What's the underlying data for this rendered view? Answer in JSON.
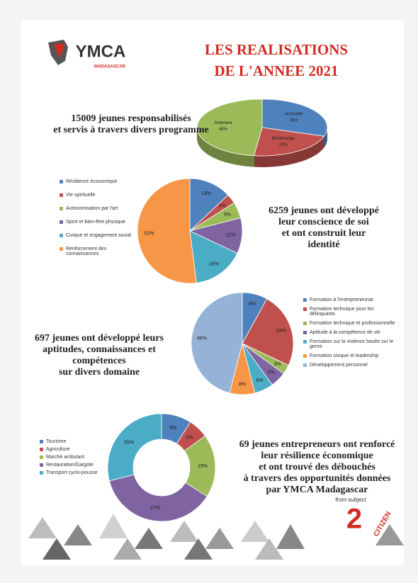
{
  "header": {
    "logo": "YMCA",
    "logo_sub": "MADAGASCAR",
    "title": [
      "LES REALISATIONS",
      "DE L'ANNEE 2021"
    ]
  },
  "chart_data": [
    {
      "type": "pie3d",
      "annotation": [
        "15009  jeunes responsabilisés",
        "et servis à travers divers programme"
      ],
      "categories": [
        "Antsirabe",
        "Moramanga",
        "Ankerana"
      ],
      "values": [
        30,
        22,
        48
      ],
      "value_labels": [
        "30%",
        "22%",
        "48%"
      ],
      "colors": [
        "#4f81bd",
        "#c0504d",
        "#9bbb59"
      ]
    },
    {
      "type": "pie",
      "annotation": [
        "6259 jeunes ont développé",
        "leur conscience de soi",
        "et ont construit leur",
        "identité"
      ],
      "categories": [
        "Résilience économique",
        "Vie spirituelle",
        "Autonomisation par l'art",
        "Sport et bien-être physique",
        "Civique et engagement social",
        "Renforcement des connaissances"
      ],
      "values": [
        13,
        3,
        5,
        11,
        16,
        52
      ],
      "value_labels": [
        "13%",
        "3%",
        "5%",
        "11%",
        "16%",
        "52%"
      ],
      "colors": [
        "#4f81bd",
        "#c0504d",
        "#9bbb59",
        "#8064a2",
        "#4bacc6",
        "#f79646"
      ]
    },
    {
      "type": "pie",
      "annotation": [
        "697  jeunes ont développé leurs",
        "aptitudes, connaissances et",
        "compétences",
        "sur divers domaine"
      ],
      "categories": [
        "Formation à l'entrepreneuriat",
        "Formation technique pour les délinquants",
        "Formation technique et professionnelle",
        "Aptitude à la compétence de vie",
        "Formation sur la violence basée sur le genre",
        "Formation civique et  leadership",
        "Développement personnel"
      ],
      "values": [
        8,
        24,
        3,
        5,
        6,
        8,
        46
      ],
      "value_labels": [
        "8%",
        "24%",
        "3%",
        "5%",
        "6%",
        "8%",
        "46%"
      ],
      "colors": [
        "#4f81bd",
        "#c0504d",
        "#9bbb59",
        "#8064a2",
        "#4bacc6",
        "#f79646",
        "#95b3d7"
      ]
    },
    {
      "type": "doughnut",
      "annotation": [
        "69 jeunes entrepreneurs ont renforcé",
        "leur résilience économique",
        "et ont trouvé des débouchés",
        "à travers des opportunités données",
        "par YMCA Madagascar"
      ],
      "categories": [
        "Tourisme",
        "Agriculture",
        "Marché ambulant",
        "Restauration/Gargote",
        "Transport cyclo-pousse"
      ],
      "values": [
        9,
        6,
        19,
        37,
        29
      ],
      "value_labels": [
        "9%",
        "6%",
        "19%",
        "37%",
        "29%"
      ],
      "colors": [
        "#4f81bd",
        "#c0504d",
        "#9bbb59",
        "#8064a2",
        "#4bacc6"
      ]
    }
  ],
  "footer": {
    "from": "from subject",
    "to": "2",
    "citizen": "CITIZEN"
  }
}
